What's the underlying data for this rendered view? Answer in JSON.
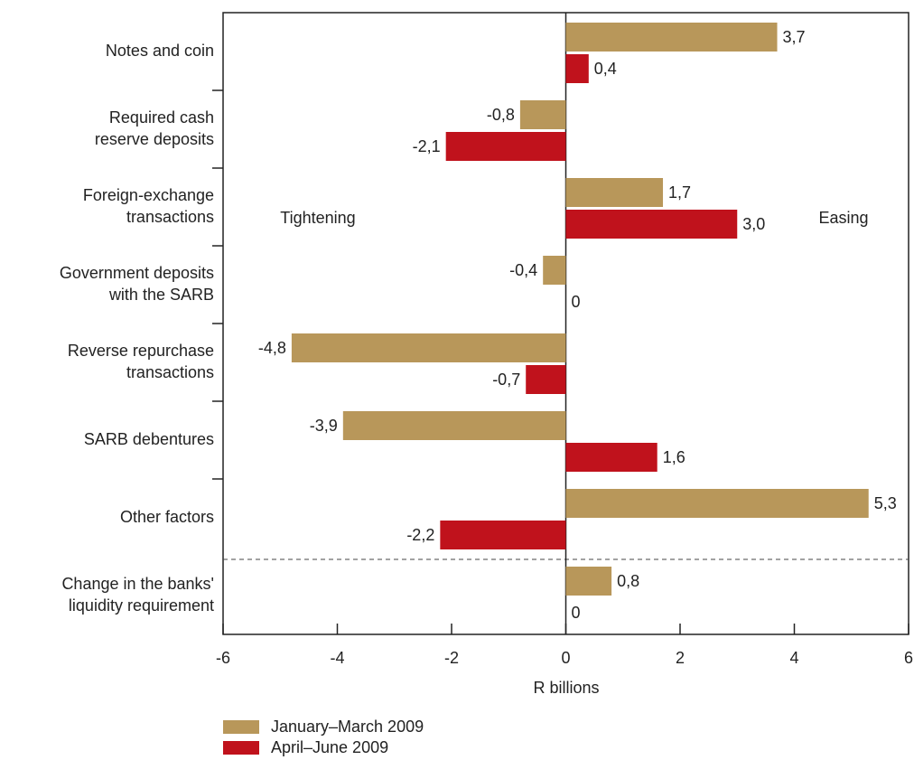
{
  "chart_data": {
    "type": "bar",
    "orientation": "horizontal",
    "x_label": "R billions",
    "annotations": [
      "Tightening",
      "Easing"
    ],
    "categories": [
      "Notes and coin",
      "Required cash\nreserve deposits",
      "Foreign-exchange\ntransactions",
      "Government deposits\nwith the SARB",
      "Reverse repurchase\ntransactions",
      "SARB debentures",
      "Other factors",
      "Change in the banks'\nliquidity requirement"
    ],
    "series": [
      {
        "name": "January–March 2009",
        "color": "#b8975a",
        "values": [
          3.7,
          -0.8,
          1.7,
          -0.4,
          -4.8,
          -3.9,
          5.3,
          0.8
        ],
        "value_labels": [
          "3,7",
          "-0,8",
          "1,7",
          "-0,4",
          "-4,8",
          "-3,9",
          "5,3",
          "0,8"
        ]
      },
      {
        "name": "April–June 2009",
        "color": "#c0121c",
        "values": [
          0.4,
          -2.1,
          3.0,
          0,
          -0.7,
          1.6,
          -2.2,
          0
        ],
        "value_labels": [
          "0,4",
          "-2,1",
          "3,0",
          "0",
          "-0,7",
          "1,6",
          "-2,2",
          "0"
        ]
      }
    ],
    "xlim": [
      -6,
      6
    ],
    "xticks": [
      -6,
      -4,
      -2,
      0,
      2,
      4,
      6
    ]
  }
}
